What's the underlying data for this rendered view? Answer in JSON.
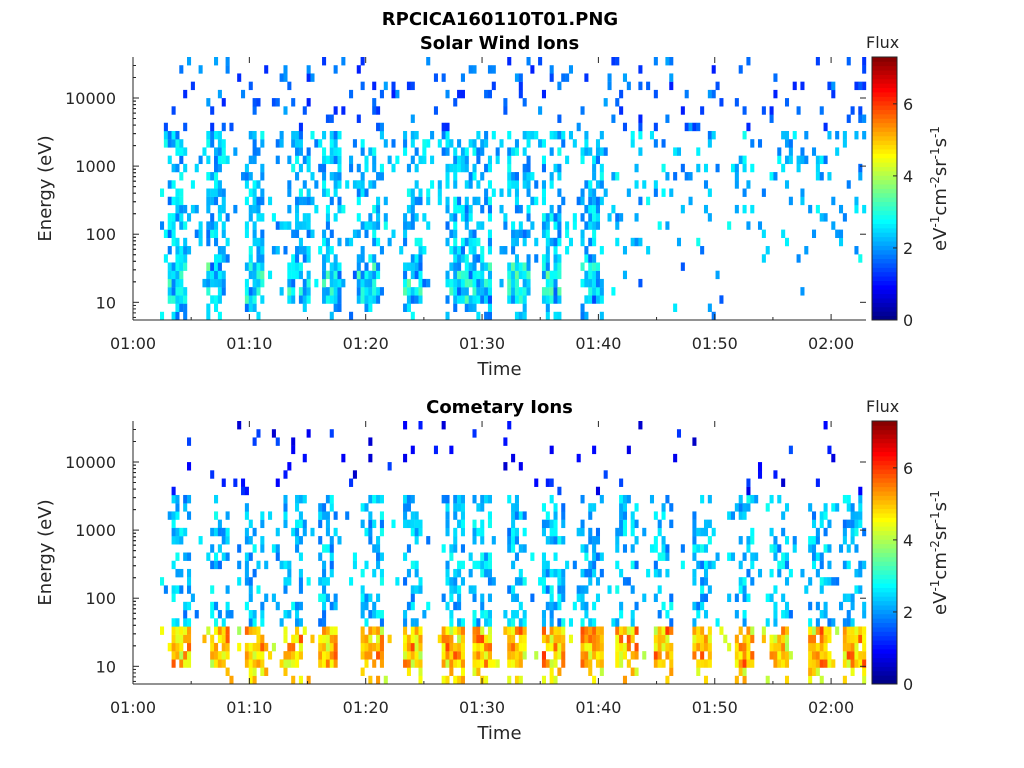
{
  "figure_title": "RPCICA160110T01.PNG",
  "chart_data": [
    {
      "type": "heatmap",
      "title": "Solar Wind Ions",
      "xlabel": "Time",
      "ylabel": "Energy (eV)",
      "x_ticks": [
        "01:00",
        "01:10",
        "01:20",
        "01:30",
        "01:40",
        "01:50",
        "02:00"
      ],
      "x_tick_minutes": [
        0,
        10,
        20,
        30,
        40,
        50,
        60
      ],
      "xlim_minutes": [
        0,
        63
      ],
      "y_scale": "log",
      "y_ticks": [
        10,
        100,
        1000,
        10000
      ],
      "y_tick_labels": [
        "10",
        "100",
        "1000",
        "10000"
      ],
      "ylim": [
        5.5,
        40000
      ],
      "colorbar": {
        "label": "Flux",
        "unit_label": "eV-1cm-2sr-1s-1",
        "range": [
          0,
          7.3
        ],
        "ticks": [
          0,
          2,
          4,
          6
        ],
        "tick_labels": [
          "0",
          "2",
          "4",
          "6"
        ],
        "colormap": "jet"
      },
      "bursts_minutes": [
        3.8,
        7.2,
        10.5,
        14.2,
        17.0,
        20.2,
        24.0,
        27.8,
        29.8,
        33.2,
        36.0,
        39.5
      ],
      "low_band_eV": [
        10,
        40
      ],
      "low_band_level": 2.8,
      "mid_band_level": 2.4,
      "high_band_level": 1.8
    },
    {
      "type": "heatmap",
      "title": "Cometary Ions",
      "xlabel": "Time",
      "ylabel": "Energy (eV)",
      "x_ticks": [
        "01:00",
        "01:10",
        "01:20",
        "01:30",
        "01:40",
        "01:50",
        "02:00"
      ],
      "x_tick_minutes": [
        0,
        10,
        20,
        30,
        40,
        50,
        60
      ],
      "xlim_minutes": [
        0,
        63
      ],
      "y_scale": "log",
      "y_ticks": [
        10,
        100,
        1000,
        10000
      ],
      "y_tick_labels": [
        "10",
        "100",
        "1000",
        "10000"
      ],
      "ylim": [
        5.5,
        40000
      ],
      "colorbar": {
        "label": "Flux",
        "unit_label": "eV-1cm-2sr-1s-1",
        "range": [
          0,
          7.3
        ],
        "ticks": [
          0,
          2,
          4,
          6
        ],
        "tick_labels": [
          "0",
          "2",
          "4",
          "6"
        ],
        "colormap": "jet"
      },
      "bursts_minutes": [
        4.2,
        7.5,
        10.5,
        13.8,
        16.8,
        20.5,
        24.0,
        27.5,
        30.0,
        33.0,
        36.2,
        39.5,
        42.5,
        45.5,
        49.0,
        52.5,
        55.5,
        59.0,
        62.0
      ],
      "low_band_eV": [
        10,
        40
      ],
      "low_band_level": 5.3,
      "mid_band_level": 2.4,
      "high_band_level": 1.2
    }
  ]
}
